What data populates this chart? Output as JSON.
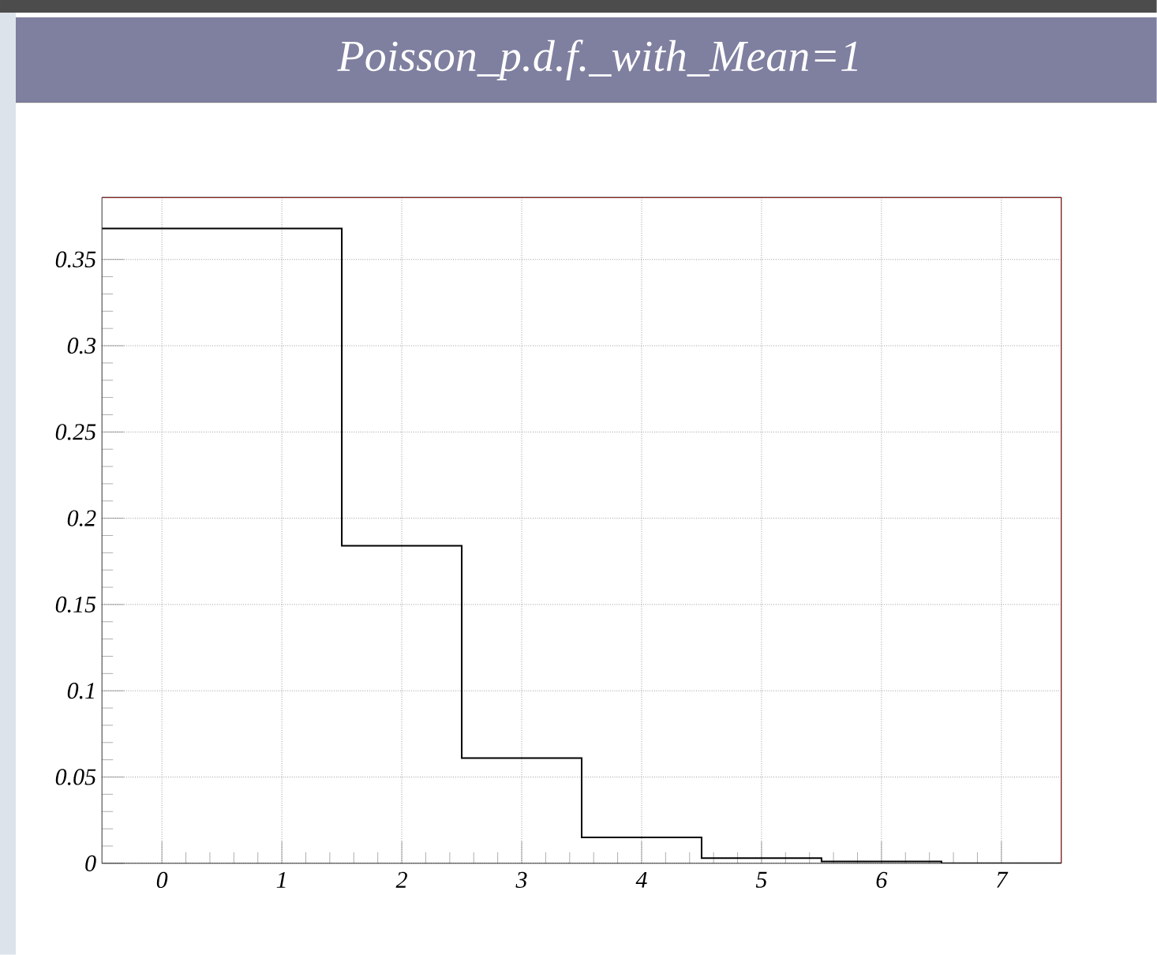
{
  "chart_data": {
    "type": "histogram",
    "title": "Poisson_p.d.f._with_Mean=1",
    "bins": [
      -0.5,
      0.5,
      1.5,
      2.5,
      3.5,
      4.5,
      5.5,
      6.5,
      7.5
    ],
    "values": [
      0.368,
      0.368,
      0.184,
      0.061,
      0.015,
      0.003,
      0.001,
      0
    ],
    "color": "#000000",
    "xlim": [
      -0.5,
      7.5
    ],
    "ylim": [
      0,
      0.386
    ],
    "xticks": [
      0,
      1,
      2,
      3,
      4,
      5,
      6,
      7
    ],
    "yticks": [
      0,
      0.05,
      0.1,
      0.15,
      0.2,
      0.25,
      0.3,
      0.35
    ],
    "grid": true
  }
}
